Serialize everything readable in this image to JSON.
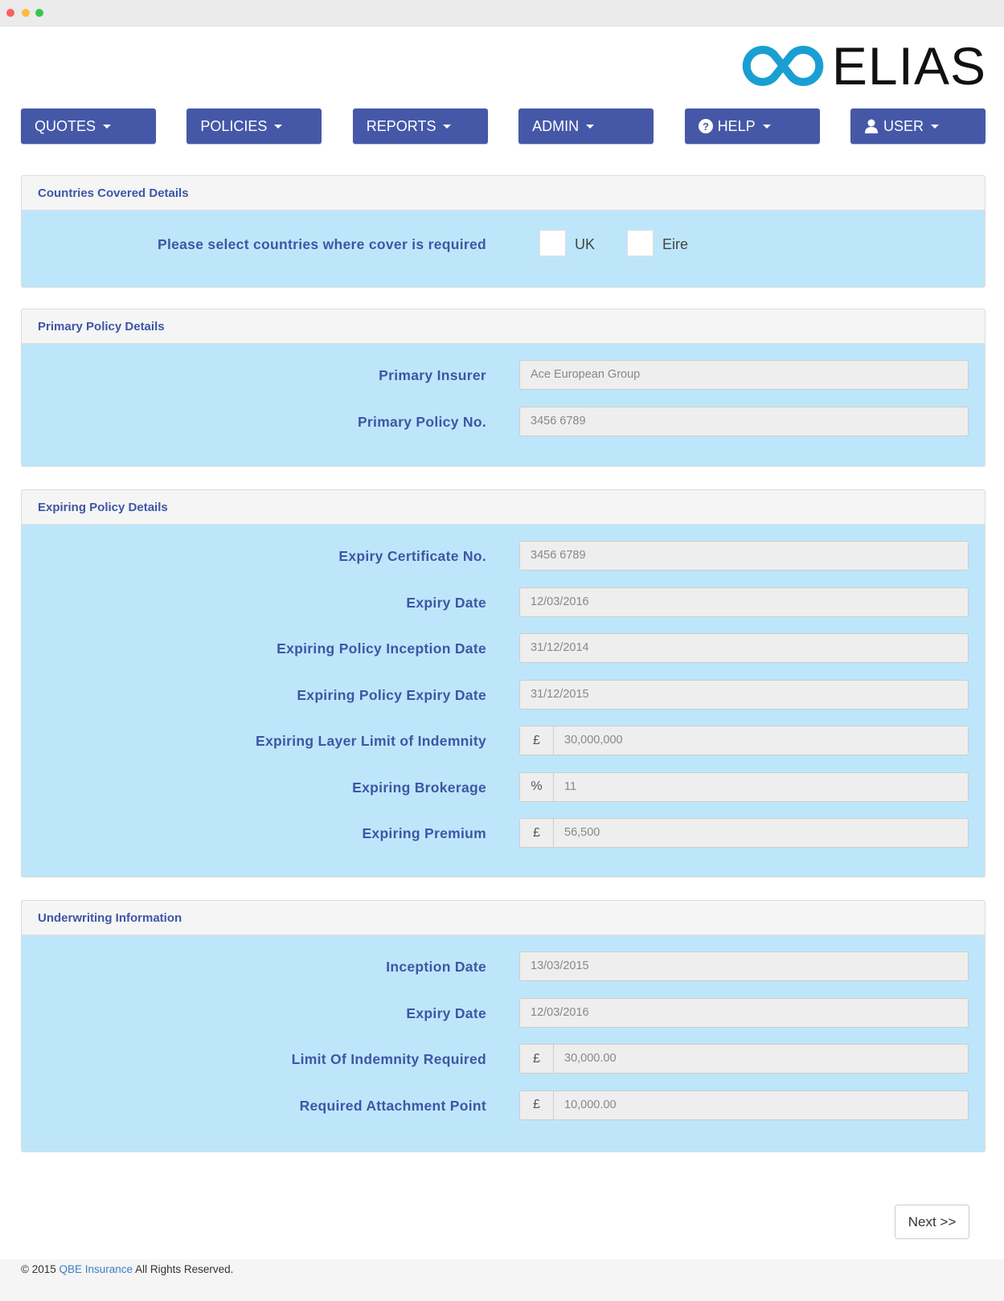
{
  "logo": {
    "text": "ELIAS",
    "color": "#1a9fd3"
  },
  "nav": [
    {
      "label": "QUOTES",
      "icon": ""
    },
    {
      "label": "POLICIES",
      "icon": ""
    },
    {
      "label": "REPORTS",
      "icon": ""
    },
    {
      "label": "ADMIN",
      "icon": ""
    },
    {
      "label": "HELP",
      "icon": "question-circle-icon"
    },
    {
      "label": "USER",
      "icon": "user-icon"
    }
  ],
  "countries": {
    "title": "Countries Covered Details",
    "prompt": "Please select countries where cover is required",
    "options": [
      {
        "label": "UK",
        "checked": false
      },
      {
        "label": "Eire",
        "checked": false
      }
    ]
  },
  "primary": {
    "title": "Primary Policy Details",
    "fields": [
      {
        "label": "Primary Insurer",
        "value": "Ace European Group",
        "addon": ""
      },
      {
        "label": "Primary Policy No.",
        "value": "3456 6789",
        "addon": ""
      }
    ]
  },
  "expiring": {
    "title": "Expiring Policy Details",
    "fields": [
      {
        "label": "Expiry Certificate No.",
        "value": "3456 6789",
        "addon": ""
      },
      {
        "label": "Expiry Date",
        "value": "12/03/2016",
        "addon": ""
      },
      {
        "label": "Expiring Policy Inception Date",
        "value": "31/12/2014",
        "addon": ""
      },
      {
        "label": "Expiring Policy Expiry Date",
        "value": "31/12/2015",
        "addon": ""
      },
      {
        "label": "Expiring Layer Limit of Indemnity",
        "value": "30,000,000",
        "addon": "£"
      },
      {
        "label": "Expiring Brokerage",
        "value": "11",
        "addon": "%"
      },
      {
        "label": "Expiring Premium",
        "value": "56,500",
        "addon": "£"
      }
    ]
  },
  "underwriting": {
    "title": "Underwriting Information",
    "fields": [
      {
        "label": "Inception Date",
        "value": "13/03/2015",
        "addon": ""
      },
      {
        "label": "Expiry Date",
        "value": "12/03/2016",
        "addon": ""
      },
      {
        "label": "Limit Of Indemnity Required",
        "value": "30,000.00",
        "addon": "£"
      },
      {
        "label": "Required Attachment Point",
        "value": "10,000.00",
        "addon": "£"
      }
    ]
  },
  "next_label": "Next >>",
  "footer": {
    "prefix": "© 2015",
    "link": "QBE Insurance",
    "suffix": "All Rights Reserved."
  }
}
